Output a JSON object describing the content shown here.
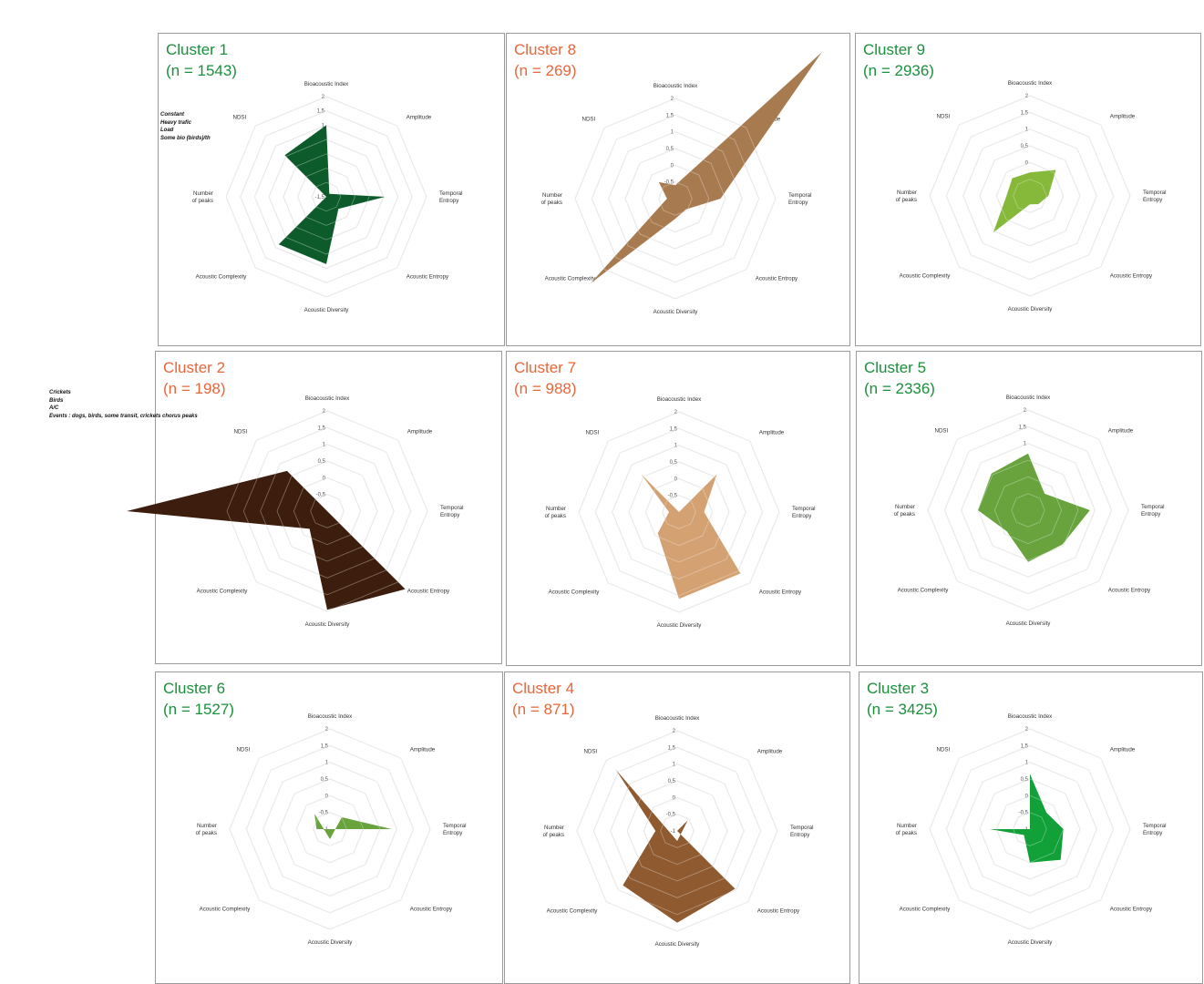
{
  "axes": [
    "Bioacoustic Index",
    "Amplitude",
    "Temporal\nEntropy",
    "Acoustic Entropy",
    "Acoustic Diversity",
    "Acoustic Complexity",
    "Number\nof peaks",
    "NDSI"
  ],
  "ticks": [
    "2",
    "1,5",
    "1",
    "0,5",
    "0",
    "-0,5",
    "-1",
    "-1,5"
  ],
  "colors": {
    "green_title": "#1a8f3c",
    "orange_title": "#e8663a",
    "grid": "#dddddd",
    "axis_label": "#333333"
  },
  "chart_data": [
    {
      "type": "radar",
      "title": "Cluster 1",
      "subtitle": "(n = 1543)",
      "color": "#0d5b2a",
      "title_color": "#1a8f3c",
      "rlim": [
        -1.5,
        2
      ],
      "values": [
        1.0,
        -1.35,
        0.55,
        -0.9,
        0.85,
        0.85,
        -1.5,
        0.55
      ],
      "notes": [
        "Constant",
        "Heavy trafic",
        "Load",
        "Some bio (birds)/th"
      ]
    },
    {
      "type": "radar",
      "title": "Cluster 8",
      "subtitle": "(n = 269)",
      "color": "#a87a4f",
      "title_color": "#e8663a",
      "rlim": [
        -1,
        2
      ],
      "values": [
        -0.6,
        5.2,
        0.35,
        -0.55,
        -0.4,
        2.6,
        -0.75,
        -0.3
      ],
      "notes": []
    },
    {
      "type": "radar",
      "title": "Cluster 9",
      "subtitle": "(n = 2936)",
      "color": "#86b83a",
      "title_color": "#1a8f3c",
      "rlim": [
        -1,
        2
      ],
      "values": [
        -0.3,
        0.1,
        -0.45,
        -0.65,
        -0.75,
        0.55,
        -0.3,
        -0.25
      ],
      "notes": []
    },
    {
      "type": "radar",
      "title": "Cluster 2",
      "subtitle": "(n = 198)",
      "color": "#3d1e0e",
      "title_color": "#e8663a",
      "rlim": [
        -1,
        2
      ],
      "values": [
        -1.0,
        1.0,
        -1.0,
        2.3,
        1.95,
        -0.25,
        5.0,
        0.7
      ],
      "notes": [
        "Crickets",
        "Birds",
        "A/C",
        "Events : dogs, birds, some transit, crickets chorus peaks"
      ]
    },
    {
      "type": "radar",
      "title": "Cluster 7",
      "subtitle": "(n = 988)",
      "color": "#d4a172",
      "title_color": "#e8663a",
      "rlim": [
        -1,
        2
      ],
      "values": [
        -1.0,
        0.6,
        -0.25,
        1.6,
        1.6,
        -0.1,
        -0.7,
        0.6
      ],
      "notes": []
    },
    {
      "type": "radar",
      "title": "Cluster 5",
      "subtitle": "(n = 2336)",
      "color": "#68a33e",
      "title_color": "#1a8f3c",
      "rlim": [
        -1,
        2
      ],
      "values": [
        0.7,
        -0.3,
        0.85,
        0.45,
        0.55,
        -0.1,
        0.5,
        0.55
      ],
      "notes": []
    },
    {
      "type": "radar",
      "title": "Cluster 6",
      "subtitle": "(n = 1527)",
      "color": "#68a33e",
      "title_color": "#1a8f3c",
      "rlim": [
        -1,
        2
      ],
      "values": [
        -1.3,
        -0.5,
        0.85,
        -1.0,
        -0.7,
        -1.0,
        -0.6,
        -0.35
      ],
      "notes": []
    },
    {
      "type": "radar",
      "title": "Cluster 4",
      "subtitle": "(n = 871)",
      "color": "#8f5a30",
      "title_color": "#e8663a",
      "rlim": [
        -1,
        2
      ],
      "values": [
        -1.3,
        -0.55,
        -1.0,
        1.45,
        1.75,
        1.3,
        -0.35,
        1.6
      ],
      "notes": []
    },
    {
      "type": "radar",
      "title": "Cluster 3",
      "subtitle": "(n = 3425)",
      "color": "#12a039",
      "title_color": "#1a8f3c",
      "rlim": [
        -1,
        2
      ],
      "values": [
        0.65,
        -0.3,
        0.0,
        0.3,
        0.0,
        -0.75,
        0.2,
        -1.0
      ],
      "notes": []
    }
  ]
}
